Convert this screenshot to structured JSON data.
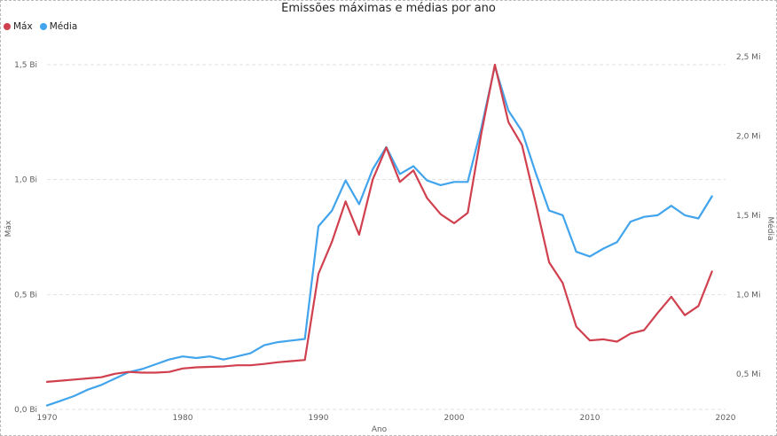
{
  "chart_data": {
    "type": "line",
    "title": "Emissões máximas e médias por ano",
    "xlabel": "Ano",
    "ylabel_left": "Máx",
    "ylabel_right": "Média",
    "legend_placement": "top-left",
    "grid": true,
    "xlim": [
      1970,
      2020
    ],
    "ylim_left": [
      0,
      1.5
    ],
    "ylim_right": [
      0.27,
      2.5
    ],
    "x_ticks": [
      "1970",
      "1980",
      "1990",
      "2000",
      "2010",
      "2020"
    ],
    "y_left_ticks": [
      "0,0 Bi",
      "0,5 Bi",
      "1,0 Bi",
      "1,5 Bi"
    ],
    "y_right_ticks": [
      "0,5 Mi",
      "1,0 Mi",
      "1,5 Mi",
      "2,0 Mi",
      "2,5 Mi"
    ],
    "x": [
      1970,
      1971,
      1972,
      1973,
      1974,
      1975,
      1976,
      1977,
      1978,
      1979,
      1980,
      1981,
      1982,
      1983,
      1984,
      1985,
      1986,
      1987,
      1988,
      1989,
      1990,
      1991,
      1992,
      1993,
      1994,
      1995,
      1996,
      1997,
      1998,
      1999,
      2000,
      2001,
      2002,
      2003,
      2004,
      2005,
      2006,
      2007,
      2008,
      2009,
      2010,
      2011,
      2012,
      2013,
      2014,
      2015,
      2016,
      2017,
      2018,
      2019
    ],
    "series": [
      {
        "name": "Máx",
        "color": "#d0404e",
        "axis": "left",
        "values": [
          0.12,
          0.125,
          0.13,
          0.135,
          0.14,
          0.155,
          0.163,
          0.16,
          0.16,
          0.163,
          0.178,
          0.183,
          0.185,
          0.187,
          0.192,
          0.192,
          0.198,
          0.205,
          0.21,
          0.215,
          0.59,
          0.73,
          0.905,
          0.76,
          1.0,
          1.14,
          0.99,
          1.04,
          0.92,
          0.85,
          0.81,
          0.855,
          1.2,
          1.5,
          1.25,
          1.15,
          0.9,
          0.64,
          0.55,
          0.36,
          0.3,
          0.305,
          0.295,
          0.33,
          0.345,
          0.42,
          0.49,
          0.41,
          0.45,
          0.6
        ]
      },
      {
        "name": "Média",
        "color": "#41a4ec",
        "axis": "right",
        "values": [
          0.3,
          0.33,
          0.36,
          0.4,
          0.43,
          0.47,
          0.51,
          0.53,
          0.56,
          0.59,
          0.61,
          0.6,
          0.61,
          0.59,
          0.61,
          0.63,
          0.68,
          0.7,
          0.71,
          0.72,
          1.43,
          1.53,
          1.72,
          1.57,
          1.79,
          1.93,
          1.76,
          1.81,
          1.72,
          1.69,
          1.71,
          1.71,
          2.05,
          2.44,
          2.16,
          2.03,
          1.77,
          1.53,
          1.5,
          1.27,
          1.24,
          1.29,
          1.33,
          1.46,
          1.49,
          1.5,
          1.56,
          1.5,
          1.48,
          1.62
        ]
      }
    ]
  }
}
